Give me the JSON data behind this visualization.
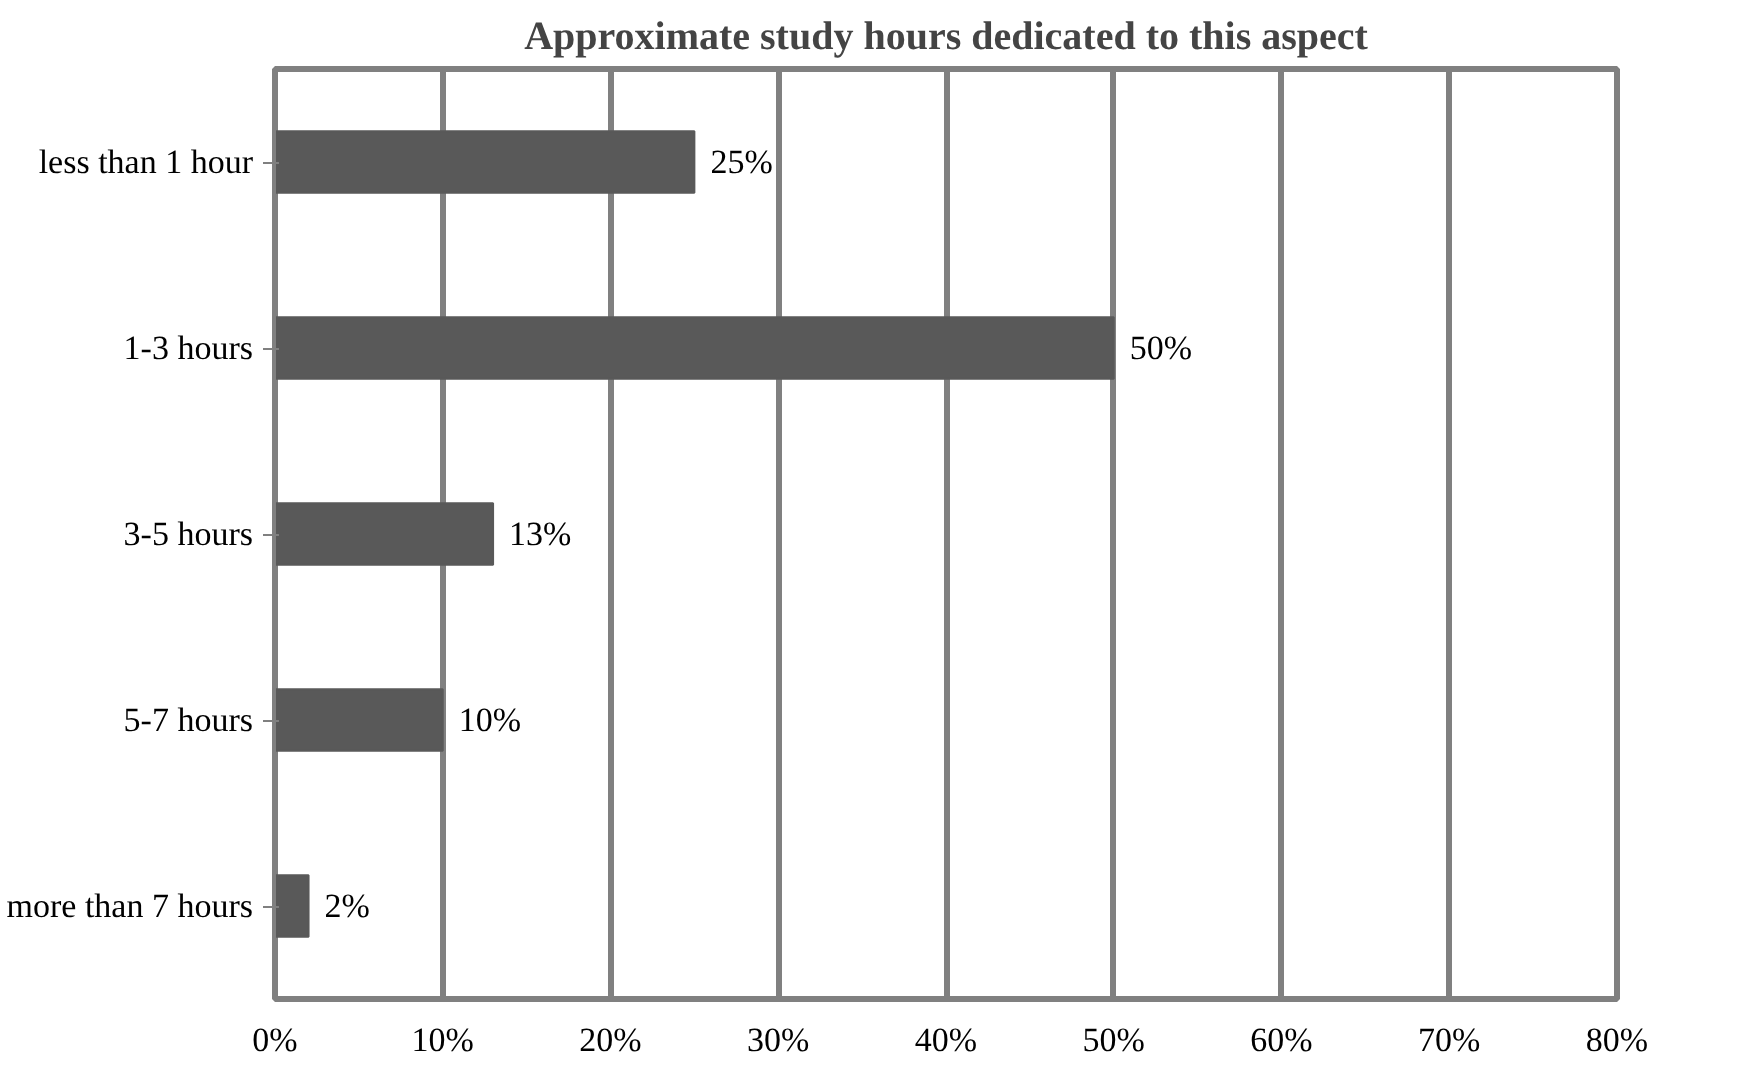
{
  "chart_data": {
    "type": "bar",
    "orientation": "horizontal",
    "title": "Approximate study hours dedicated to this aspect",
    "categories": [
      "less than 1 hour",
      "1-3 hours",
      "3-5 hours",
      "5-7 hours",
      "more than 7 hours"
    ],
    "values": [
      25,
      50,
      13,
      10,
      2
    ],
    "value_labels": [
      "25%",
      "50%",
      "13%",
      "10%",
      "2%"
    ],
    "color": "#595959",
    "xlim": [
      0,
      80
    ],
    "xticks": [
      {
        "value": 0,
        "label": "0%"
      },
      {
        "value": 10,
        "label": "10%"
      },
      {
        "value": 20,
        "label": "20%"
      },
      {
        "value": 30,
        "label": "30%"
      },
      {
        "value": 40,
        "label": "40%"
      },
      {
        "value": 50,
        "label": "50%"
      },
      {
        "value": 60,
        "label": "60%"
      },
      {
        "value": 70,
        "label": "70%"
      },
      {
        "value": 80,
        "label": "80%"
      }
    ],
    "grid": "x"
  }
}
